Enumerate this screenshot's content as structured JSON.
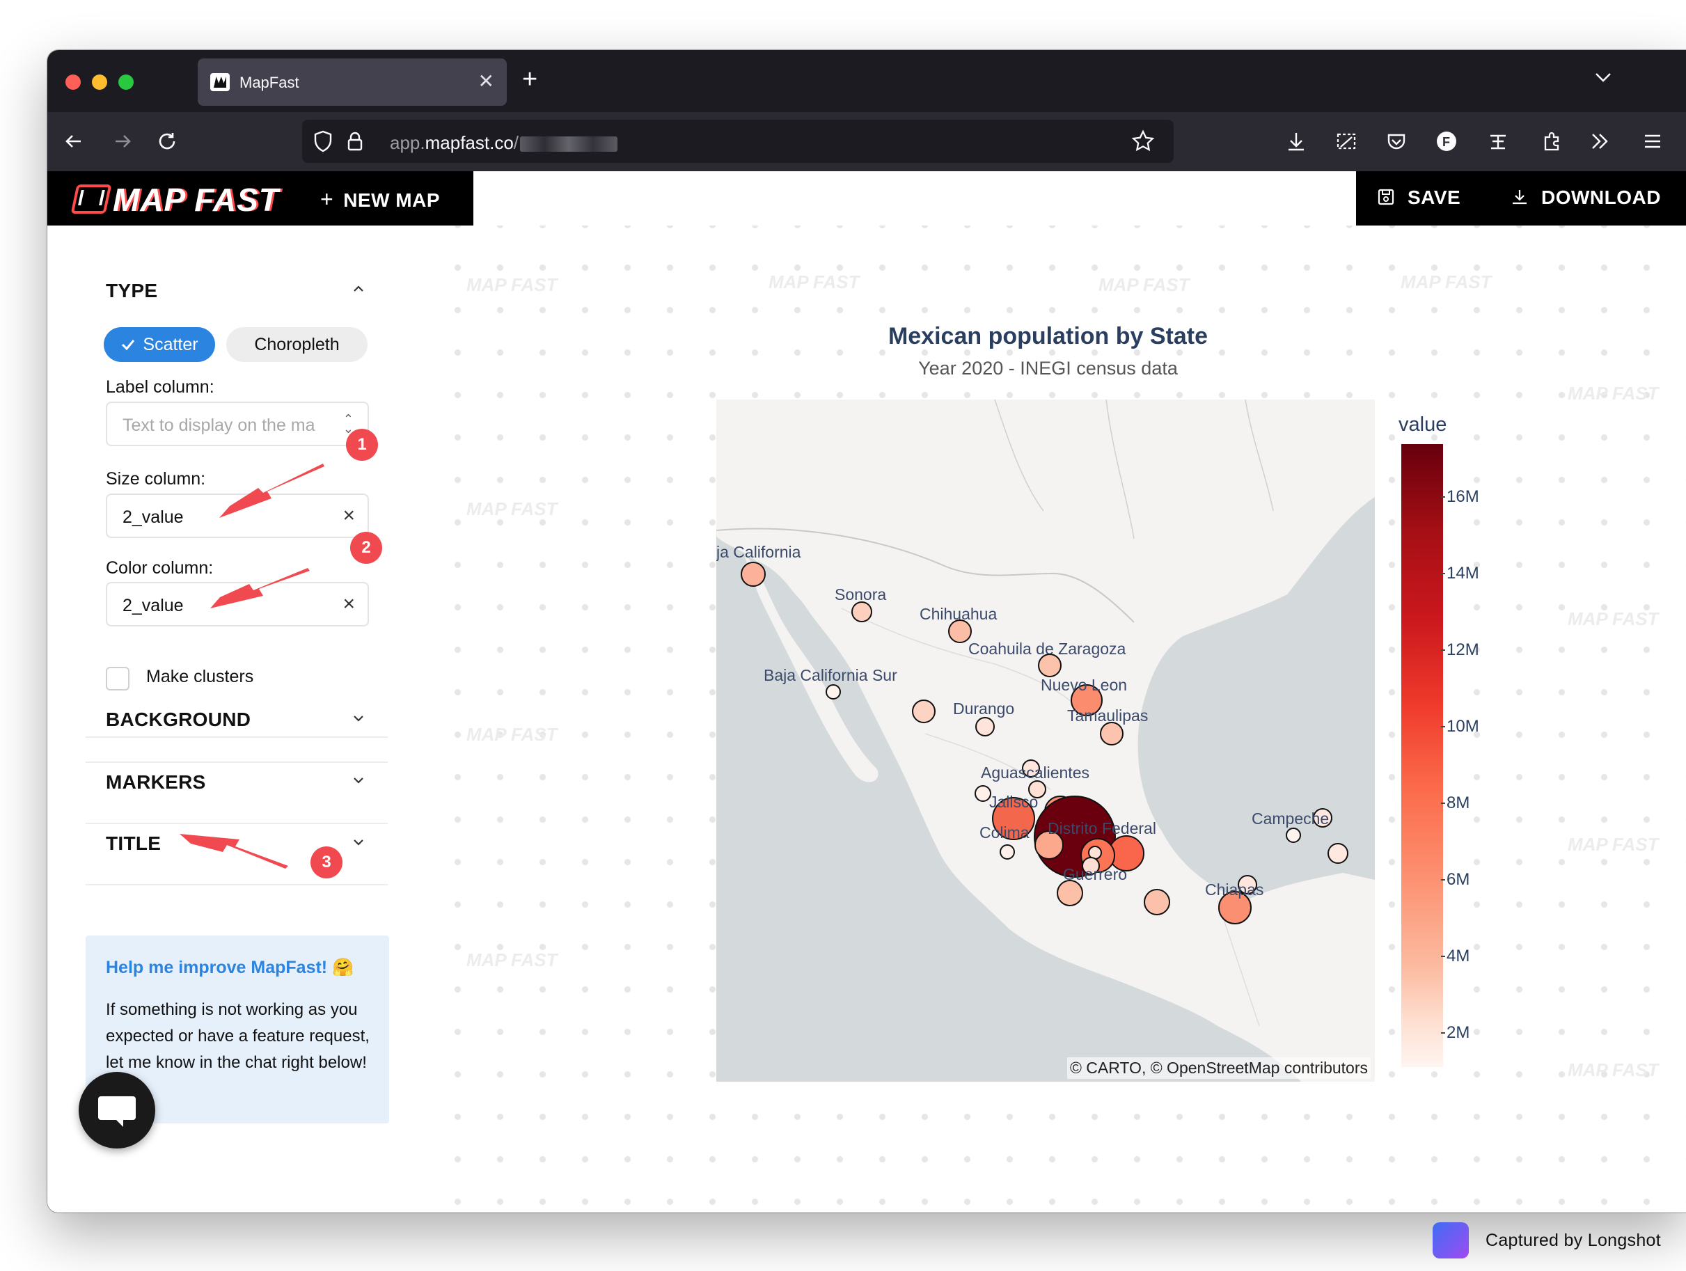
{
  "browser": {
    "tab_title": "MapFast",
    "url_domain": "app.mapfast.co/",
    "url_host_bold": "mapfast.co",
    "url_prefix": "app.",
    "url_suffix": "/"
  },
  "app": {
    "logo_text": "MAP FAST",
    "new_map_label": "NEW MAP",
    "save_label": "SAVE",
    "download_label": "DOWNLOAD",
    "accent_color": "#2a84e0"
  },
  "sidebar": {
    "type": {
      "title": "TYPE",
      "options": [
        "Scatter",
        "Choropleth"
      ],
      "selected": "Scatter",
      "label_column": {
        "label": "Label column:",
        "placeholder": "Text to display on the ma"
      },
      "size_column": {
        "label": "Size column:",
        "value": "2_value"
      },
      "color_column": {
        "label": "Color column:",
        "value": "2_value"
      },
      "make_clusters": {
        "label": "Make clusters",
        "checked": false
      }
    },
    "sections": [
      "BACKGROUND",
      "MARKERS",
      "TITLE"
    ],
    "help": {
      "title": "Help me improve MapFast! 🤗",
      "body": "If something is not working as you expected or have a feature request, let me know in the chat right below!"
    }
  },
  "annotations": [
    "1",
    "2",
    "3"
  ],
  "map": {
    "title": "Mexican population by State",
    "subtitle": "Year 2020 - INEGI census data",
    "attribution": "© CARTO, © OpenStreetMap contributors",
    "colorbar_title": "value",
    "colorbar_ticks": [
      "16M",
      "14M",
      "12M",
      "10M",
      "8M",
      "6M",
      "4M",
      "2M"
    ],
    "state_labels": [
      "ja California",
      "Sonora",
      "Chihuahua",
      "Coahuila de Zaragoza",
      "Baja California Sur",
      "Nuevo Leon",
      "Durango",
      "Tamaulipas",
      "Aguascalientes",
      "Jalisco",
      "Colima",
      "Distrito Federal",
      "Guerrero",
      "Campeche",
      "Chiapas"
    ],
    "watermark": "MAP FAST"
  },
  "footer": {
    "capture_text": "Captured by Longshot"
  }
}
